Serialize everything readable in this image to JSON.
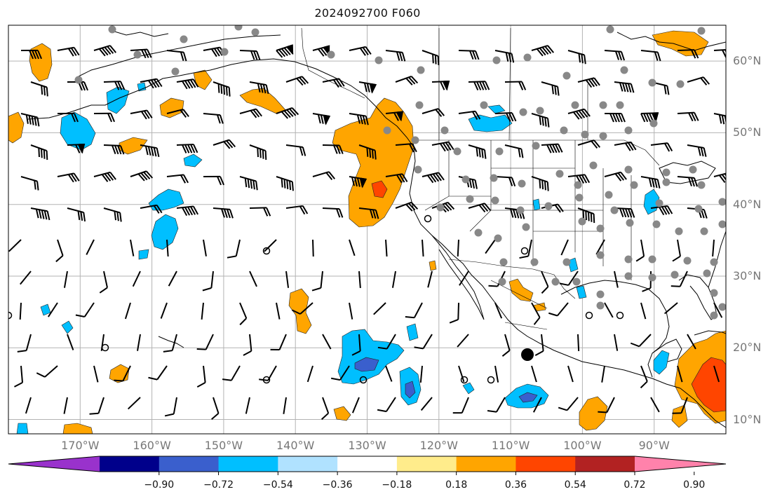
{
  "title": "2024092700 F060",
  "map": {
    "lat_labels": [
      {
        "text": "60°N",
        "lat": 60
      },
      {
        "text": "50°N",
        "lat": 50
      },
      {
        "text": "40°N",
        "lat": 40
      },
      {
        "text": "30°N",
        "lat": 30
      },
      {
        "text": "20°N",
        "lat": 20
      },
      {
        "text": "10°N",
        "lat": 10
      }
    ],
    "lon_labels": [
      {
        "text": "170°W",
        "lon": -170
      },
      {
        "text": "160°W",
        "lon": -160
      },
      {
        "text": "150°W",
        "lon": -150
      },
      {
        "text": "140°W",
        "lon": -140
      },
      {
        "text": "130°W",
        "lon": -130
      },
      {
        "text": "120°W",
        "lon": -120
      },
      {
        "text": "110°W",
        "lon": -110
      },
      {
        "text": "100°W",
        "lon": -100
      },
      {
        "text": "90°W",
        "lon": -90
      }
    ],
    "extent": {
      "lon_min": -180,
      "lon_max": -80,
      "lat_min": 8,
      "lat_max": 65
    }
  },
  "colorbar": {
    "colors": [
      "#9932cc",
      "#00008b",
      "#3a5fcd",
      "#00bfff",
      "#b0e2ff",
      "#ffffff",
      "#ffec8b",
      "#ffa500",
      "#ff4500",
      "#b22222",
      "#ff82ab"
    ],
    "tick_labels": [
      "−0.90",
      "−0.72",
      "−0.54",
      "−0.36",
      "−0.18",
      "0.18",
      "0.36",
      "0.54",
      "0.72",
      "0.90"
    ]
  }
}
